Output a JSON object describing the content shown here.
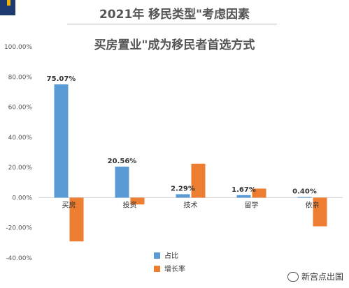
{
  "header": {
    "heading": "2021年 移民类型\"考虑因素",
    "watermark": "新宫点出国",
    "brand_color": "#1f3a6e",
    "brand_accent_color": "#f2b400"
  },
  "chart_data": {
    "type": "bar",
    "title": "买房置业\"成为移民者首选方式",
    "categories": [
      "买房",
      "投资",
      "技术",
      "留学",
      "依亲"
    ],
    "series": [
      {
        "name": "占比",
        "color": "#5b9bd5",
        "values": [
          75.07,
          20.56,
          2.29,
          1.67,
          0.4
        ],
        "data_labels": [
          "75.07%",
          "20.56%",
          "2.29%",
          "1.67%",
          "0.40%"
        ]
      },
      {
        "name": "增长率",
        "color": "#ed7d31",
        "values": [
          -29.0,
          -4.5,
          22.5,
          6.0,
          -19.0
        ]
      }
    ],
    "yticks": [
      "100.00%",
      "80.00%",
      "60.00%",
      "40.00%",
      "20.00%",
      "0.00%",
      "-20.00%",
      "-40.00%"
    ],
    "ylim": [
      -40,
      100
    ],
    "grid": false,
    "legend_position": "bottom-center"
  }
}
